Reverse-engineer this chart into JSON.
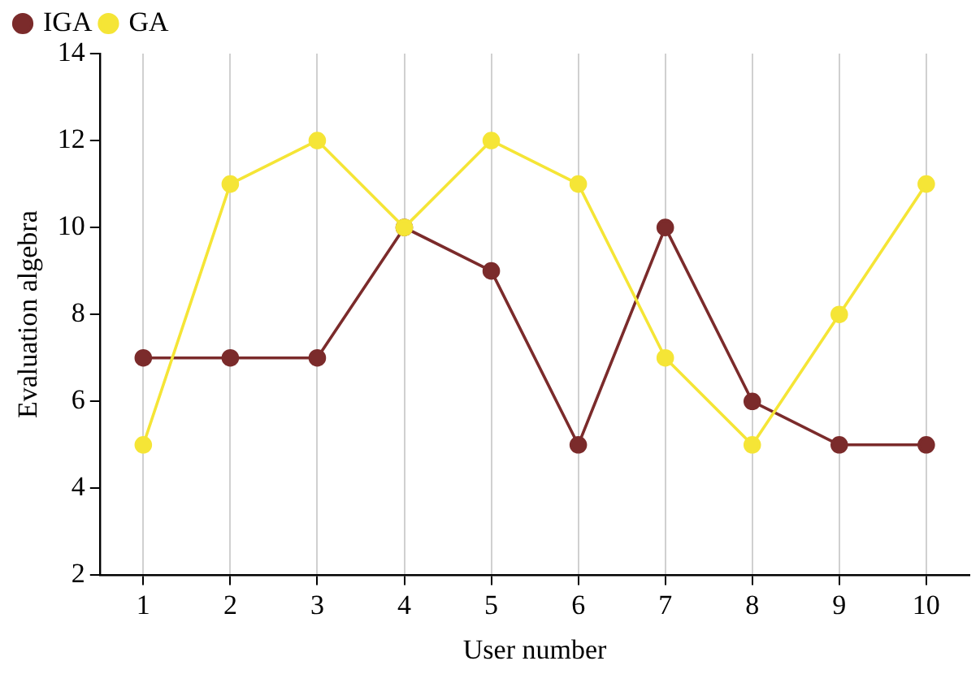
{
  "chart_data": {
    "type": "line",
    "xlabel": "User number",
    "ylabel": "Evaluation algebra",
    "categories": [
      "1",
      "2",
      "3",
      "4",
      "5",
      "6",
      "7",
      "8",
      "9",
      "10"
    ],
    "series": [
      {
        "name": "IGA",
        "color": "#7b2b2b",
        "values": [
          7,
          7,
          7,
          10,
          9,
          5,
          10,
          6,
          5,
          5
        ]
      },
      {
        "name": "GA",
        "color": "#f5e536",
        "values": [
          5,
          11,
          12,
          10,
          12,
          11,
          7,
          5,
          8,
          11
        ]
      }
    ],
    "ylim": [
      2,
      14
    ],
    "yticks": [
      2,
      4,
      6,
      8,
      10,
      12,
      14
    ],
    "grid": "x",
    "legend": "top left",
    "marker": "circle",
    "line_style": "solid"
  }
}
